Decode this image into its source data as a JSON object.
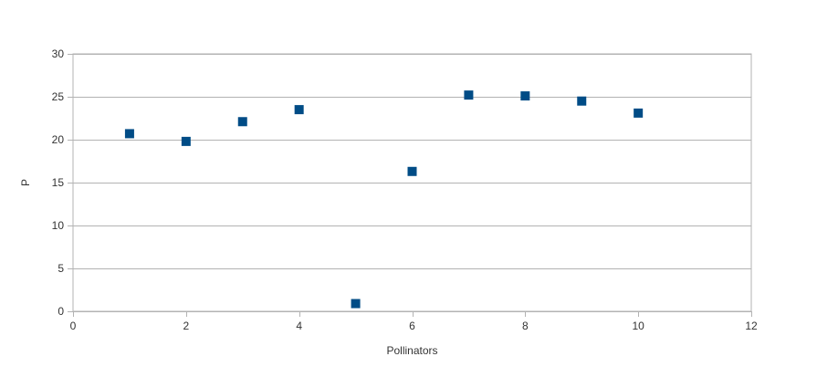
{
  "chart_data": {
    "type": "scatter",
    "title": "",
    "xlabel": "Pollinators",
    "ylabel": "P",
    "xlim": [
      0,
      12
    ],
    "ylim": [
      0,
      30
    ],
    "xticks": [
      0,
      2,
      4,
      6,
      8,
      10,
      12
    ],
    "yticks": [
      0,
      5,
      10,
      15,
      20,
      25,
      30
    ],
    "grid": {
      "horizontal": true,
      "vertical": false
    },
    "legend": "none",
    "marker": "square",
    "colors": {
      "marker": "#004c86",
      "grid": "#b3b3b3",
      "axis": "#b3b3b3"
    },
    "series": [
      {
        "x": [
          1,
          2,
          3,
          4,
          5,
          6,
          7,
          8,
          9,
          10
        ],
        "y": [
          20.7,
          19.8,
          22.1,
          23.5,
          0.9,
          16.3,
          25.2,
          25.1,
          24.5,
          23.1
        ]
      }
    ]
  }
}
